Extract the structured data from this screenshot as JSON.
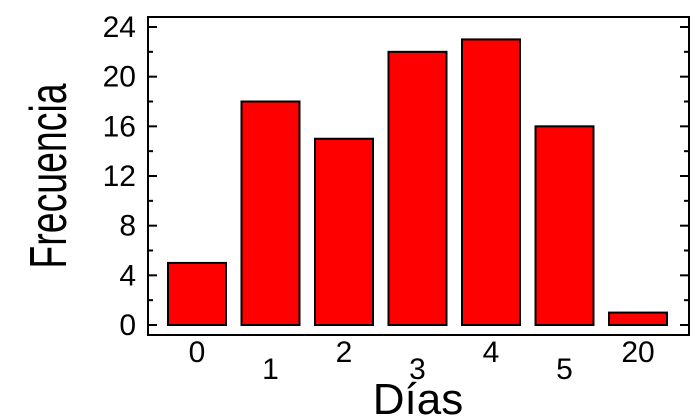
{
  "chart_data": {
    "type": "bar",
    "categories": [
      "0",
      "1",
      "2",
      "3",
      "4",
      "5",
      "20"
    ],
    "values": [
      5,
      18,
      15,
      22,
      23,
      16,
      1
    ],
    "title": "",
    "xlabel": "Días",
    "ylabel": "Frecuencia",
    "ylim": [
      0,
      24
    ],
    "yticks": [
      "0",
      "4",
      "8",
      "12",
      "16",
      "20",
      "24"
    ],
    "bar_color": "#ff0000",
    "grid": false,
    "legend": "none"
  }
}
